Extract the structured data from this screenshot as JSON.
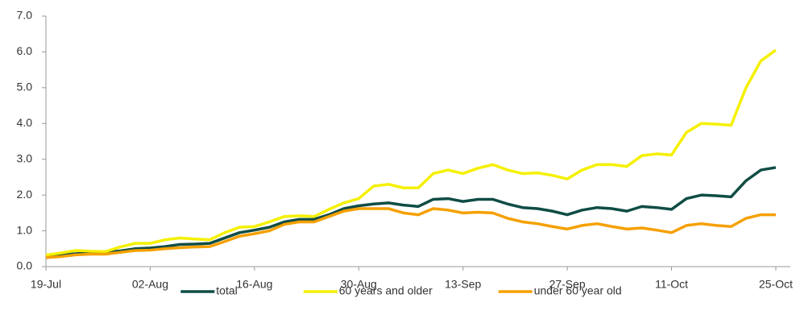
{
  "chart_data": {
    "type": "line",
    "categories": [
      "19-Jul",
      null,
      null,
      null,
      null,
      null,
      null,
      "02-Aug",
      null,
      null,
      null,
      null,
      null,
      null,
      "16-Aug",
      null,
      null,
      null,
      null,
      null,
      null,
      "30-Aug",
      null,
      null,
      null,
      null,
      null,
      null,
      "13-Sep",
      null,
      null,
      null,
      null,
      null,
      null,
      "27-Sep",
      null,
      null,
      null,
      null,
      null,
      null,
      "11-Oct",
      null,
      null,
      null,
      null,
      null,
      null,
      "25-Oct"
    ],
    "series": [
      {
        "name": "total",
        "color": "#0f4d45",
        "values": [
          0.3,
          0.33,
          0.36,
          0.4,
          0.4,
          0.44,
          0.5,
          0.52,
          0.56,
          0.62,
          0.63,
          0.65,
          0.8,
          0.95,
          1.02,
          1.1,
          1.25,
          1.32,
          1.32,
          1.45,
          1.62,
          1.7,
          1.75,
          1.78,
          1.72,
          1.68,
          1.88,
          1.9,
          1.82,
          1.88,
          1.88,
          1.75,
          1.65,
          1.62,
          1.55,
          1.45,
          1.58,
          1.65,
          1.62,
          1.55,
          1.68,
          1.65,
          1.6,
          1.9,
          2.0,
          1.98,
          1.95,
          2.4,
          2.7,
          2.77
        ]
      },
      {
        "name": "60 years and older",
        "color": "#f5f000",
        "values": [
          0.32,
          0.38,
          0.45,
          0.43,
          0.42,
          0.55,
          0.65,
          0.65,
          0.75,
          0.8,
          0.77,
          0.75,
          0.95,
          1.1,
          1.12,
          1.25,
          1.4,
          1.42,
          1.4,
          1.6,
          1.78,
          1.9,
          2.25,
          2.3,
          2.2,
          2.2,
          2.6,
          2.7,
          2.6,
          2.75,
          2.85,
          2.7,
          2.6,
          2.62,
          2.55,
          2.45,
          2.7,
          2.85,
          2.85,
          2.8,
          3.1,
          3.15,
          3.12,
          3.75,
          4.0,
          3.98,
          3.95,
          5.0,
          5.75,
          6.05
        ]
      },
      {
        "name": "under 60 year old",
        "color": "#f5a000",
        "values": [
          0.25,
          0.28,
          0.33,
          0.35,
          0.35,
          0.4,
          0.45,
          0.46,
          0.5,
          0.53,
          0.55,
          0.56,
          0.7,
          0.85,
          0.92,
          1.0,
          1.18,
          1.25,
          1.25,
          1.4,
          1.55,
          1.62,
          1.62,
          1.62,
          1.5,
          1.45,
          1.62,
          1.58,
          1.5,
          1.52,
          1.5,
          1.35,
          1.25,
          1.2,
          1.12,
          1.05,
          1.15,
          1.2,
          1.12,
          1.05,
          1.08,
          1.02,
          0.95,
          1.15,
          1.2,
          1.15,
          1.12,
          1.35,
          1.45,
          1.45
        ]
      }
    ],
    "ylim": [
      0,
      7
    ],
    "yticks": [
      {
        "value": 0,
        "label": "0.0"
      },
      {
        "value": 1,
        "label": "1.0"
      },
      {
        "value": 2,
        "label": "2.0"
      },
      {
        "value": 3,
        "label": "3.0"
      },
      {
        "value": 4,
        "label": "4.0"
      },
      {
        "value": 5,
        "label": "5.0"
      },
      {
        "value": 6,
        "label": "6.0"
      },
      {
        "value": 7,
        "label": "7.0"
      }
    ],
    "grid": false,
    "legend": "bottom"
  }
}
